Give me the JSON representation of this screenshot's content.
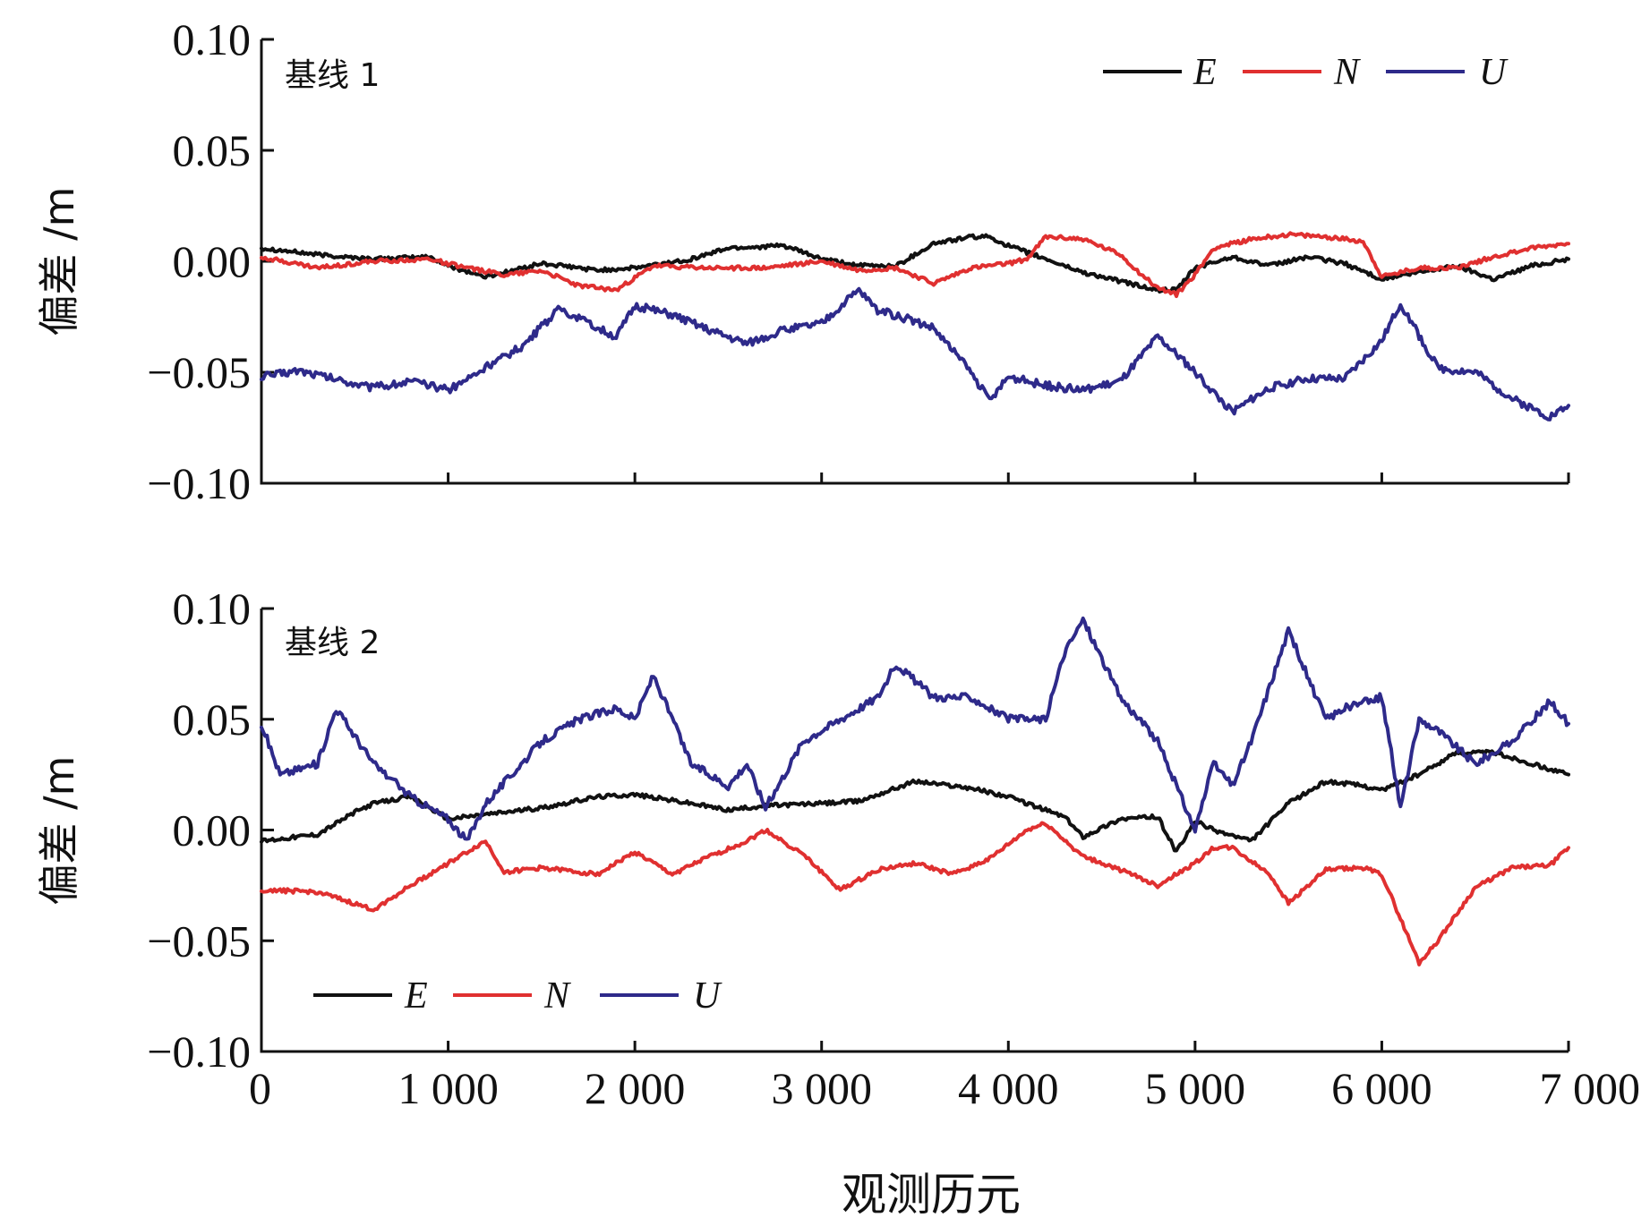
{
  "chart_data": [
    {
      "type": "line",
      "panel_label": "基线 1",
      "ylabel": "偏差 /m",
      "xlabel": "观测历元",
      "xlim": [
        0,
        7000
      ],
      "ylim": [
        -0.1,
        0.1
      ],
      "xticks": [
        0,
        1000,
        2000,
        3000,
        4000,
        5000,
        6000,
        7000
      ],
      "xtick_labels": [
        "0",
        "1 000",
        "2 000",
        "3 000",
        "4 000",
        "5 000",
        "6 000",
        "7 000"
      ],
      "yticks": [
        -0.1,
        -0.05,
        0.0,
        0.05,
        0.1
      ],
      "ytick_labels": [
        "−0.10",
        "−0.05",
        "0.00",
        "0.05",
        "0.10"
      ],
      "legend_position": "top-right",
      "series": [
        {
          "name": "E",
          "color": "#111111",
          "x": [
            0,
            300,
            600,
            900,
            1000,
            1200,
            1500,
            1800,
            2000,
            2300,
            2500,
            2800,
            3000,
            3200,
            3400,
            3600,
            3800,
            3900,
            4000,
            4200,
            4400,
            4600,
            4800,
            4900,
            5000,
            5200,
            5400,
            5600,
            5800,
            6000,
            6200,
            6400,
            6600,
            6800,
            7000
          ],
          "y": [
            0.006,
            0.003,
            0.001,
            0.002,
            -0.002,
            -0.007,
            -0.001,
            -0.004,
            -0.003,
            0.001,
            0.006,
            0.007,
            0.001,
            -0.002,
            -0.002,
            0.008,
            0.011,
            0.011,
            0.007,
            0.001,
            -0.005,
            -0.009,
            -0.013,
            -0.013,
            -0.003,
            0.002,
            -0.002,
            0.002,
            -0.001,
            -0.008,
            -0.005,
            -0.002,
            -0.008,
            -0.002,
            0.001
          ]
        },
        {
          "name": "N",
          "color": "#e03030",
          "x": [
            0,
            300,
            600,
            900,
            1100,
            1300,
            1500,
            1700,
            1900,
            2100,
            2400,
            2700,
            3000,
            3200,
            3400,
            3600,
            3800,
            4000,
            4100,
            4200,
            4400,
            4600,
            4700,
            4800,
            4900,
            5000,
            5100,
            5300,
            5500,
            5700,
            5900,
            6000,
            6200,
            6400,
            6600,
            6800,
            7000
          ],
          "y": [
            0.002,
            -0.003,
            0.0,
            0.001,
            -0.003,
            -0.006,
            -0.004,
            -0.011,
            -0.013,
            -0.002,
            -0.003,
            -0.003,
            0.0,
            -0.004,
            -0.003,
            -0.01,
            -0.003,
            -0.001,
            0.001,
            0.011,
            0.01,
            0.003,
            -0.005,
            -0.012,
            -0.015,
            -0.006,
            0.006,
            0.01,
            0.012,
            0.011,
            0.009,
            -0.007,
            -0.003,
            -0.003,
            0.002,
            0.006,
            0.008
          ]
        },
        {
          "name": "U",
          "color": "#2e2a8a",
          "x": [
            0,
            200,
            400,
            600,
            800,
            1000,
            1200,
            1400,
            1600,
            1700,
            1900,
            2000,
            2200,
            2400,
            2600,
            2800,
            3000,
            3200,
            3300,
            3500,
            3600,
            3800,
            3900,
            4000,
            4200,
            4400,
            4600,
            4800,
            5000,
            5200,
            5400,
            5600,
            5800,
            6000,
            6100,
            6300,
            6500,
            6700,
            6900,
            7000
          ],
          "y": [
            -0.052,
            -0.049,
            -0.053,
            -0.057,
            -0.054,
            -0.058,
            -0.048,
            -0.038,
            -0.021,
            -0.026,
            -0.034,
            -0.02,
            -0.024,
            -0.031,
            -0.037,
            -0.031,
            -0.028,
            -0.013,
            -0.022,
            -0.027,
            -0.03,
            -0.05,
            -0.063,
            -0.052,
            -0.056,
            -0.058,
            -0.054,
            -0.034,
            -0.05,
            -0.068,
            -0.057,
            -0.053,
            -0.053,
            -0.036,
            -0.019,
            -0.048,
            -0.05,
            -0.062,
            -0.07,
            -0.065
          ]
        }
      ]
    },
    {
      "type": "line",
      "panel_label": "基线 2",
      "ylabel": "偏差 /m",
      "xlabel": "观测历元",
      "xlim": [
        0,
        7000
      ],
      "ylim": [
        -0.1,
        0.1
      ],
      "xticks": [
        0,
        1000,
        2000,
        3000,
        4000,
        5000,
        6000,
        7000
      ],
      "xtick_labels": [
        "0",
        "1 000",
        "2 000",
        "3 000",
        "4 000",
        "5 000",
        "6 000",
        "7 000"
      ],
      "yticks": [
        -0.1,
        -0.05,
        0.0,
        0.05,
        0.1
      ],
      "ytick_labels": [
        "−0.10",
        "−0.05",
        "0.00",
        "0.05",
        "0.10"
      ],
      "legend_position": "bottom-left",
      "series": [
        {
          "name": "E",
          "color": "#111111",
          "x": [
            0,
            300,
            500,
            600,
            800,
            1000,
            1200,
            1500,
            1800,
            2000,
            2300,
            2500,
            2700,
            3000,
            3200,
            3500,
            3800,
            4000,
            4300,
            4400,
            4600,
            4800,
            4900,
            5000,
            5100,
            5300,
            5500,
            5700,
            5900,
            6000,
            6200,
            6400,
            6600,
            6800,
            7000
          ],
          "y": [
            -0.005,
            -0.002,
            0.008,
            0.012,
            0.015,
            0.005,
            0.007,
            0.01,
            0.015,
            0.016,
            0.012,
            0.009,
            0.011,
            0.012,
            0.013,
            0.022,
            0.019,
            0.015,
            0.006,
            -0.003,
            0.005,
            0.006,
            -0.01,
            0.004,
            0.0,
            -0.005,
            0.012,
            0.022,
            0.02,
            0.018,
            0.025,
            0.035,
            0.035,
            0.03,
            0.025
          ]
        },
        {
          "name": "N",
          "color": "#e03030",
          "x": [
            0,
            300,
            600,
            800,
            1000,
            1200,
            1300,
            1500,
            1800,
            2000,
            2200,
            2400,
            2600,
            2700,
            2900,
            3100,
            3300,
            3500,
            3700,
            3900,
            4100,
            4200,
            4400,
            4600,
            4800,
            5000,
            5100,
            5200,
            5400,
            5500,
            5700,
            5900,
            6000,
            6100,
            6200,
            6300,
            6500,
            6700,
            6900,
            7000
          ],
          "y": [
            -0.027,
            -0.028,
            -0.036,
            -0.025,
            -0.015,
            -0.005,
            -0.019,
            -0.017,
            -0.02,
            -0.01,
            -0.02,
            -0.012,
            -0.005,
            0.0,
            -0.011,
            -0.027,
            -0.018,
            -0.015,
            -0.02,
            -0.013,
            0.0,
            0.003,
            -0.012,
            -0.018,
            -0.025,
            -0.015,
            -0.008,
            -0.008,
            -0.02,
            -0.033,
            -0.018,
            -0.017,
            -0.02,
            -0.04,
            -0.06,
            -0.05,
            -0.026,
            -0.017,
            -0.016,
            -0.008
          ]
        },
        {
          "name": "U",
          "color": "#2e2a8a",
          "x": [
            0,
            100,
            300,
            400,
            600,
            800,
            1000,
            1100,
            1200,
            1500,
            1700,
            1900,
            2000,
            2100,
            2300,
            2500,
            2600,
            2700,
            2900,
            3100,
            3300,
            3400,
            3600,
            3800,
            4000,
            4200,
            4300,
            4400,
            4600,
            4800,
            4900,
            5000,
            5100,
            5200,
            5300,
            5500,
            5700,
            5800,
            6000,
            6100,
            6200,
            6300,
            6500,
            6700,
            6900,
            7000
          ],
          "y": [
            0.048,
            0.025,
            0.03,
            0.055,
            0.03,
            0.015,
            0.005,
            -0.005,
            0.012,
            0.04,
            0.05,
            0.055,
            0.05,
            0.07,
            0.03,
            0.02,
            0.03,
            0.01,
            0.04,
            0.05,
            0.06,
            0.075,
            0.06,
            0.06,
            0.05,
            0.05,
            0.08,
            0.095,
            0.06,
            0.04,
            0.02,
            0.0,
            0.03,
            0.02,
            0.04,
            0.09,
            0.05,
            0.055,
            0.06,
            0.01,
            0.05,
            0.045,
            0.03,
            0.04,
            0.058,
            0.048
          ]
        }
      ]
    }
  ]
}
